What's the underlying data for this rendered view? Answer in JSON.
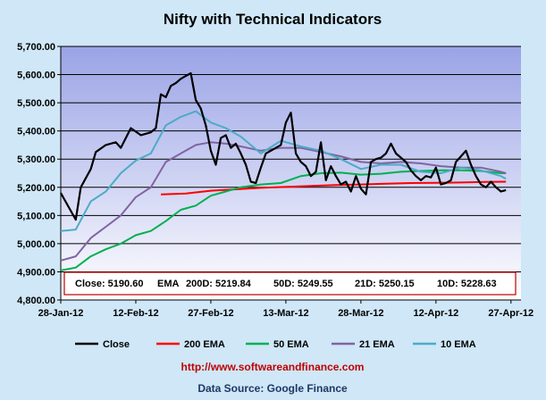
{
  "chart_data": {
    "type": "line",
    "title": "Nifty with Technical Indicators",
    "xlabel": "",
    "ylabel": "",
    "ylim": [
      4800,
      5700
    ],
    "y_ticks": [
      "5,700.00",
      "5,600.00",
      "5,500.00",
      "5,400.00",
      "5,300.00",
      "5,200.00",
      "5,100.00",
      "5,000.00",
      "4,900.00",
      "4,800.00"
    ],
    "x_tick_labels": [
      "28-Jan-12",
      "12-Feb-12",
      "27-Feb-12",
      "13-Mar-12",
      "28-Mar-12",
      "12-Apr-12",
      "27-Apr-12"
    ],
    "x_tick_days": [
      0,
      15,
      30,
      45,
      60,
      75,
      90
    ],
    "xlim": [
      0,
      92
    ],
    "grid": "horizontal",
    "legend_position": "bottom",
    "colors": {
      "background": "#cfe7f7",
      "plot_top": "#9aa3e6",
      "plot_bottom": "#ffffff",
      "grid": "#000000",
      "info_border": "#c00000"
    },
    "series": [
      {
        "name": "Close",
        "color": "#000000",
        "x": [
          0,
          3,
          4,
          6,
          7,
          9,
          11,
          12,
          13,
          14,
          16,
          17,
          18,
          19,
          20,
          21,
          22,
          23,
          24,
          25,
          26,
          27,
          28,
          29,
          30,
          31,
          32,
          33,
          34,
          35,
          36,
          37,
          38,
          39,
          40,
          41,
          42,
          43,
          44,
          45,
          46,
          47,
          48,
          49,
          50,
          51,
          52,
          53,
          54,
          55,
          56,
          57,
          58,
          59,
          60,
          61,
          62,
          63,
          64,
          65,
          66,
          67,
          68,
          69,
          70,
          71,
          72,
          73,
          74,
          75,
          76,
          77,
          78,
          79,
          80,
          81,
          82,
          83,
          84,
          85,
          86,
          87,
          88,
          89
        ],
        "y": [
          5180,
          5085,
          5200,
          5265,
          5325,
          5350,
          5360,
          5340,
          5375,
          5410,
          5385,
          5390,
          5395,
          5410,
          5530,
          5520,
          5560,
          5570,
          5585,
          5595,
          5605,
          5510,
          5480,
          5420,
          5330,
          5280,
          5375,
          5385,
          5340,
          5355,
          5320,
          5280,
          5220,
          5215,
          5270,
          5320,
          5330,
          5340,
          5350,
          5430,
          5465,
          5320,
          5290,
          5275,
          5240,
          5255,
          5360,
          5225,
          5275,
          5240,
          5210,
          5220,
          5185,
          5240,
          5195,
          5175,
          5290,
          5300,
          5305,
          5320,
          5355,
          5320,
          5305,
          5290,
          5260,
          5240,
          5225,
          5240,
          5235,
          5270,
          5210,
          5215,
          5225,
          5290,
          5310,
          5330,
          5280,
          5240,
          5210,
          5200,
          5220,
          5200,
          5185,
          5190
        ]
      },
      {
        "name": "200 EMA",
        "color": "#ff0000",
        "x": [
          20,
          25,
          30,
          40,
          50,
          55,
          60,
          65,
          70,
          75,
          80,
          85,
          89
        ],
        "y": [
          5175,
          5178,
          5188,
          5198,
          5205,
          5208,
          5210,
          5213,
          5215,
          5216,
          5217,
          5219,
          5220
        ]
      },
      {
        "name": "50 EMA",
        "color": "#00b050",
        "x": [
          0,
          3,
          6,
          9,
          12,
          15,
          18,
          21,
          24,
          27,
          30,
          33,
          36,
          40,
          44,
          48,
          52,
          56,
          60,
          64,
          68,
          72,
          76,
          80,
          84,
          88,
          89
        ],
        "y": [
          4905,
          4915,
          4955,
          4980,
          5000,
          5030,
          5045,
          5080,
          5120,
          5135,
          5170,
          5185,
          5200,
          5210,
          5215,
          5240,
          5250,
          5252,
          5245,
          5248,
          5255,
          5258,
          5260,
          5260,
          5258,
          5250,
          5250
        ]
      },
      {
        "name": "21 EMA",
        "color": "#8064a2",
        "x": [
          0,
          3,
          6,
          9,
          12,
          15,
          18,
          21,
          24,
          27,
          30,
          33,
          36,
          40,
          44,
          48,
          52,
          56,
          60,
          64,
          68,
          72,
          76,
          80,
          84,
          88,
          89
        ],
        "y": [
          4940,
          4955,
          5020,
          5060,
          5100,
          5165,
          5200,
          5290,
          5320,
          5350,
          5360,
          5355,
          5345,
          5330,
          5340,
          5340,
          5325,
          5310,
          5290,
          5285,
          5290,
          5285,
          5275,
          5270,
          5270,
          5255,
          5250
        ]
      },
      {
        "name": "10 EMA",
        "color": "#4bacc6",
        "x": [
          0,
          3,
          6,
          9,
          12,
          15,
          18,
          21,
          24,
          27,
          30,
          33,
          36,
          40,
          44,
          48,
          52,
          56,
          60,
          64,
          68,
          72,
          76,
          80,
          84,
          88,
          89
        ],
        "y": [
          5045,
          5050,
          5150,
          5185,
          5250,
          5295,
          5320,
          5420,
          5450,
          5470,
          5430,
          5410,
          5380,
          5320,
          5365,
          5345,
          5330,
          5300,
          5265,
          5280,
          5280,
          5255,
          5250,
          5270,
          5260,
          5240,
          5230
        ]
      }
    ]
  },
  "info_box": {
    "close": "Close: 5190.60",
    "ema_label": "EMA",
    "ema200": "200D: 5219.84",
    "ema50": "50D: 5249.55",
    "ema21": "21D: 5250.15",
    "ema10": "10D: 5228.63"
  },
  "footer": {
    "url": "http://www.softwareandfinance.com",
    "source": "Data Source: Google Finance"
  }
}
